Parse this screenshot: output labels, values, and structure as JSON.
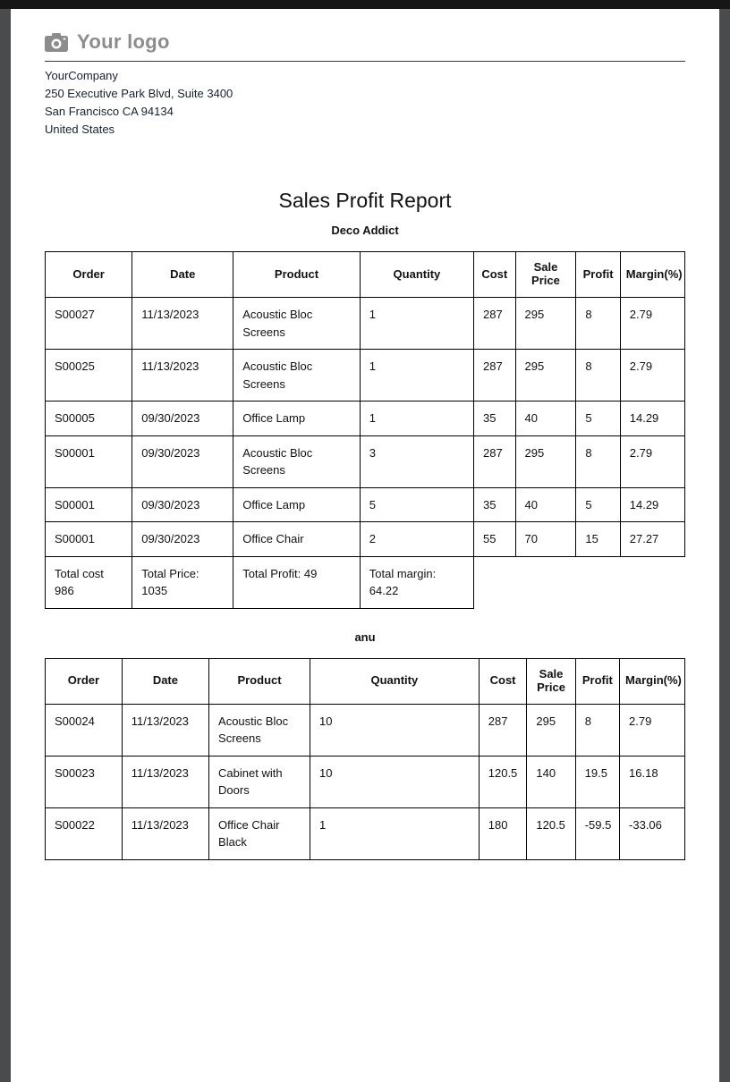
{
  "colors": {
    "frame_background": "#4a4b4d",
    "topbar": "#161616",
    "page_background": "#ffffff",
    "text": "#111111",
    "logo_gray": "#8c8c8c",
    "table_border": "#000000"
  },
  "header": {
    "logo_text": "Your logo",
    "logo_icon": "camera-icon",
    "company_lines": [
      "YourCompany",
      "250 Executive Park Blvd, Suite 3400",
      "San Francisco CA 94134",
      "United States"
    ]
  },
  "report": {
    "title": "Sales Profit Report"
  },
  "tables": [
    {
      "customer": "Deco Addict",
      "headers": [
        "Order",
        "Date",
        "Product",
        "Quantity",
        "Cost",
        "Sale Price",
        "Profit",
        "Margin(%)"
      ],
      "rows": [
        [
          "S00027",
          "11/13/2023",
          "Acoustic Bloc Screens",
          "1",
          "287",
          "295",
          "8",
          "2.79"
        ],
        [
          "S00025",
          "11/13/2023",
          "Acoustic Bloc Screens",
          "1",
          "287",
          "295",
          "8",
          "2.79"
        ],
        [
          "S00005",
          "09/30/2023",
          "Office Lamp",
          "1",
          "35",
          "40",
          "5",
          "14.29"
        ],
        [
          "S00001",
          "09/30/2023",
          "Acoustic Bloc Screens",
          "3",
          "287",
          "295",
          "8",
          "2.79"
        ],
        [
          "S00001",
          "09/30/2023",
          "Office Lamp",
          "5",
          "35",
          "40",
          "5",
          "14.29"
        ],
        [
          "S00001",
          "09/30/2023",
          "Office Chair",
          "2",
          "55",
          "70",
          "15",
          "27.27"
        ]
      ],
      "totals": [
        "Total cost 986",
        "Total Price: 1035",
        "Total Profit: 49",
        "Total margin: 64.22"
      ]
    },
    {
      "customer": "anu",
      "headers": [
        "Order",
        "Date",
        "Product",
        "Quantity",
        "Cost",
        "Sale Price",
        "Profit",
        "Margin(%)"
      ],
      "rows": [
        [
          "S00024",
          "11/13/2023",
          "Acoustic Bloc Screens",
          "10",
          "287",
          "295",
          "8",
          "2.79"
        ],
        [
          "S00023",
          "11/13/2023",
          "Cabinet with Doors",
          "10",
          "120.5",
          "140",
          "19.5",
          "16.18"
        ],
        [
          "S00022",
          "11/13/2023",
          "Office Chair Black",
          "1",
          "180",
          "120.5",
          "-59.5",
          "-33.06"
        ]
      ]
    }
  ]
}
